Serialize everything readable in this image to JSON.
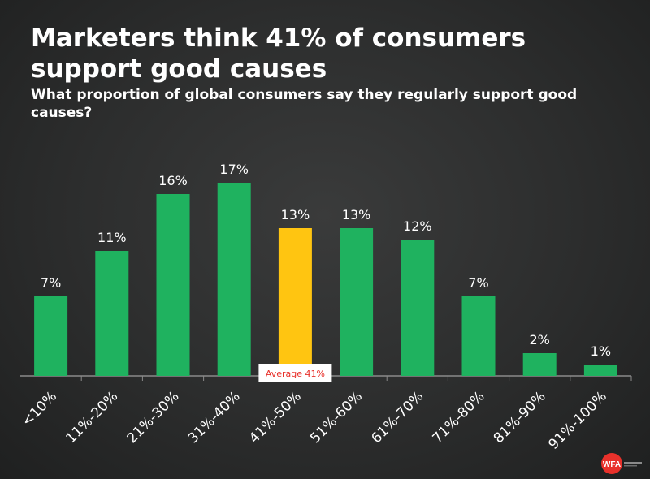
{
  "title": "Marketers think 41% of consumers support good causes",
  "subtitle": "What proportion of global consumers say they regularly support good causes?",
  "chart_data": {
    "type": "bar",
    "categories": [
      "<10%",
      "11%-20%",
      "21%-30%",
      "31%-40%",
      "41%-50%",
      "51%-60%",
      "61%-70%",
      "71%-80%",
      "81%-90%",
      "91%-100%"
    ],
    "values": [
      7,
      11,
      16,
      17,
      13,
      13,
      12,
      7,
      2,
      1
    ],
    "value_labels": [
      "7%",
      "11%",
      "16%",
      "17%",
      "13%",
      "13%",
      "12%",
      "7%",
      "2%",
      "1%"
    ],
    "highlight_index": 4,
    "annotation": "Average 41%",
    "ylim": [
      0,
      17
    ],
    "grid": false,
    "colors": {
      "bar": "#1fb25f",
      "highlight": "#ffc511",
      "axis": "#8a8a8a",
      "annotation_text": "#e8312b",
      "annotation_bg": "#ffffff"
    }
  },
  "logo": {
    "text": "WFA",
    "icon": "wfa-logo-icon",
    "color": "#e8312b"
  }
}
